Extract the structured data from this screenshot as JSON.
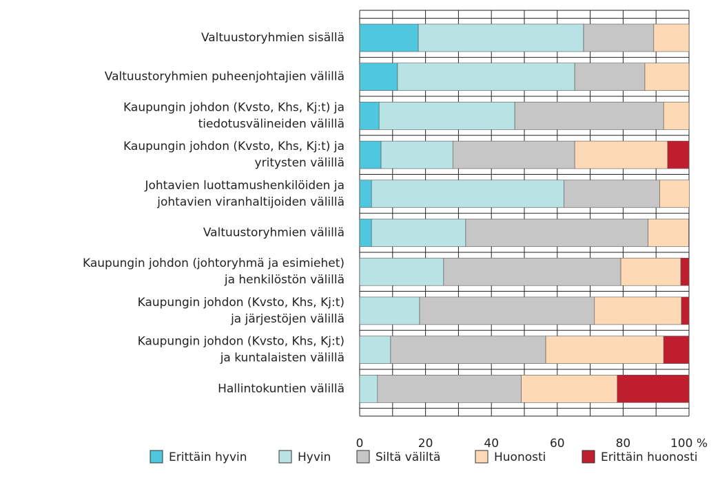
{
  "chart_data": {
    "type": "stacked-barh",
    "categories": [
      [
        "Valtuustoryhmien  sisällä"
      ],
      [
        "Valtuustoryhmien  puheenjohtajien välillä"
      ],
      [
        "Kaupungin johdon (Kvsto, Khs, Kj:t) ja",
        "tiedotusvälineiden välillä"
      ],
      [
        "Kaupungin johdon (Kvsto, Khs, Kj:t) ja",
        "yritysten välillä"
      ],
      [
        "Johtavien  luottamushenkilöiden ja",
        "johtavien viranhaltijoiden välillä"
      ],
      [
        "Valtuustoryhmien välillä"
      ],
      [
        "Kaupungin johdon (johtoryhmä ja esimiehet)",
        "ja henkilöstön välillä"
      ],
      [
        "Kaupungin johdon (Kvsto, Khs, Kj:t)",
        "ja järjestöjen välillä"
      ],
      [
        "Kaupungin johdon (Kvsto, Khs, Kj:t)",
        "ja kuntalaisten välillä"
      ],
      [
        "Hallintokuntien välillä"
      ]
    ],
    "series": [
      {
        "name": "Erittäin hyvin",
        "color": "#4fc8df",
        "values": [
          17.8,
          11.5,
          5.9,
          6.5,
          3.6,
          3.6,
          0,
          0,
          0,
          0
        ]
      },
      {
        "name": "Hyvin",
        "color": "#b8e2e3",
        "values": [
          50.2,
          53.8,
          41.2,
          21.8,
          58.4,
          28.6,
          25.5,
          18.2,
          9.4,
          5.4
        ]
      },
      {
        "name": "Siltä väliltä",
        "color": "#c6c6c6",
        "values": [
          21.3,
          21.3,
          45.2,
          37.0,
          29.1,
          55.4,
          53.8,
          53.1,
          47.1,
          43.7
        ]
      },
      {
        "name": "Huonosti",
        "color": "#fdd9b5",
        "values": [
          10.7,
          13.4,
          7.7,
          28.2,
          9.0,
          12.3,
          18.2,
          26.4,
          35.8,
          29.1
        ]
      },
      {
        "name": "Erittäin huonosti",
        "color": "#be1e2d",
        "values": [
          0,
          0,
          0,
          6.5,
          0,
          0,
          2.5,
          2.3,
          7.7,
          21.8
        ]
      }
    ],
    "xlim": [
      0,
      100
    ],
    "xticks": [
      0,
      20,
      40,
      60,
      80,
      {
        "value": 100,
        "label": "100 %"
      }
    ],
    "grid": true
  }
}
